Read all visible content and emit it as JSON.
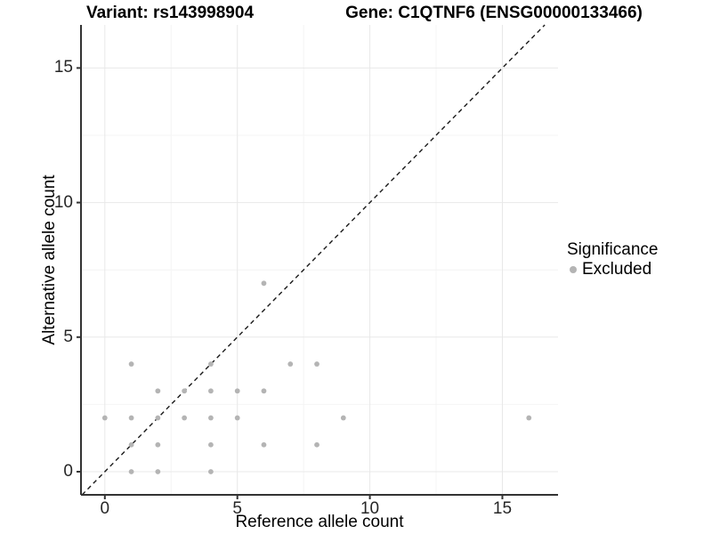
{
  "titles": {
    "variant": "Variant: rs143998904",
    "gene": "Gene: C1QTNF6 (ENSG00000133466)"
  },
  "chart_data": {
    "type": "scatter",
    "xlabel": "Reference allele count",
    "ylabel": "Alternative allele count",
    "x_ticks": [
      0,
      5,
      10,
      15
    ],
    "y_ticks": [
      0,
      5,
      10,
      15
    ],
    "x_minor_ticks": [
      2.5,
      7.5,
      12.5
    ],
    "y_minor_ticks": [
      2.5,
      7.5,
      12.5
    ],
    "xlim": [
      -0.9,
      17.1
    ],
    "ylim": [
      -0.86,
      16.6
    ],
    "grid": "on",
    "identity_line": {
      "equation": "y = x",
      "style": "dashed"
    },
    "series": [
      {
        "name": "Excluded",
        "color": "#b4b4b4",
        "points": [
          [
            0,
            2
          ],
          [
            1,
            0
          ],
          [
            1,
            1
          ],
          [
            1,
            2
          ],
          [
            1,
            4
          ],
          [
            2,
            0
          ],
          [
            2,
            1
          ],
          [
            2,
            2
          ],
          [
            2,
            3
          ],
          [
            3,
            2
          ],
          [
            3,
            3
          ],
          [
            4,
            0
          ],
          [
            4,
            1
          ],
          [
            4,
            2
          ],
          [
            4,
            3
          ],
          [
            4,
            4
          ],
          [
            5,
            2
          ],
          [
            5,
            3
          ],
          [
            6,
            1
          ],
          [
            6,
            3
          ],
          [
            6,
            7
          ],
          [
            7,
            4
          ],
          [
            8,
            1
          ],
          [
            8,
            4
          ],
          [
            9,
            2
          ],
          [
            16,
            2
          ]
        ]
      }
    ],
    "legend": {
      "position": "right",
      "title": "Significance",
      "items": [
        {
          "label": "Excluded",
          "color": "#b4b4b4"
        }
      ]
    }
  },
  "colors": {
    "point": "#b4b4b4",
    "grid_major": "#e8e8e8",
    "grid_minor": "#f4f4f4",
    "axis_line": "#333333",
    "dashed_line": "#1a1a1a",
    "background": "#ffffff"
  }
}
